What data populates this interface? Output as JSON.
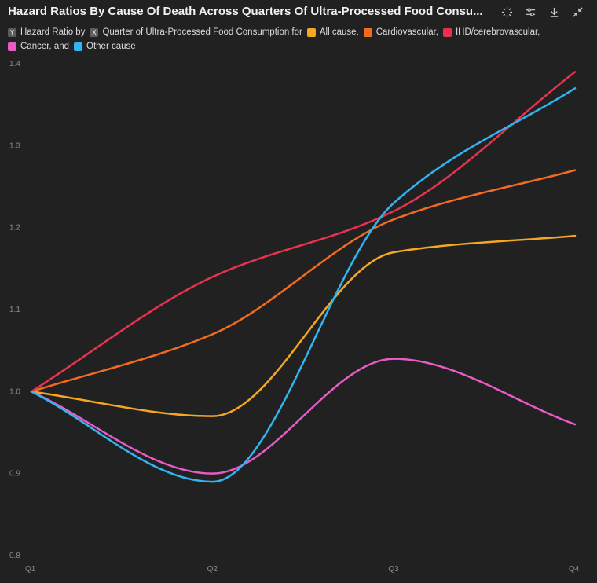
{
  "header": {
    "title": "Hazard Ratios By Cause Of Death Across Quarters Of Ultra-Processed Food Consu..."
  },
  "toolbar": {
    "icons": [
      "sparkle-icon",
      "sliders-icon",
      "download-icon",
      "collapse-icon"
    ]
  },
  "legend": {
    "y_badge": "Y",
    "y_label": "Hazard Ratio by",
    "x_badge": "X",
    "x_label": "Quarter of Ultra-Processed Food Consumption for",
    "series_labels": [
      "All cause,",
      "Cardiovascular,",
      "IHD/cerebrovascular,",
      "Cancer, and",
      "Other cause"
    ]
  },
  "colors": {
    "all_cause": "#f5a623",
    "cardiovascular": "#f26b21",
    "ihd": "#e8334f",
    "cancer": "#e85ac6",
    "other": "#2fb5f2"
  },
  "chart_data": {
    "type": "line",
    "categories": [
      "Q1",
      "Q2",
      "Q3",
      "Q4"
    ],
    "ylim": [
      0.8,
      1.4
    ],
    "yticks": [
      "0.8",
      "0.9",
      "1.0",
      "1.1",
      "1.2",
      "1.3",
      "1.4"
    ],
    "series": [
      {
        "name": "All cause",
        "color": "#f5a623",
        "values": [
          1.0,
          0.97,
          1.17,
          1.19
        ]
      },
      {
        "name": "Cardiovascular",
        "color": "#f26b21",
        "values": [
          1.0,
          1.07,
          1.21,
          1.27
        ]
      },
      {
        "name": "IHD/cerebrovascular",
        "color": "#e8334f",
        "values": [
          1.0,
          1.14,
          1.22,
          1.39
        ]
      },
      {
        "name": "Cancer",
        "color": "#e85ac6",
        "values": [
          1.0,
          0.9,
          1.04,
          0.96
        ]
      },
      {
        "name": "Other cause",
        "color": "#2fb5f2",
        "values": [
          1.0,
          0.89,
          1.23,
          1.37
        ]
      }
    ]
  }
}
